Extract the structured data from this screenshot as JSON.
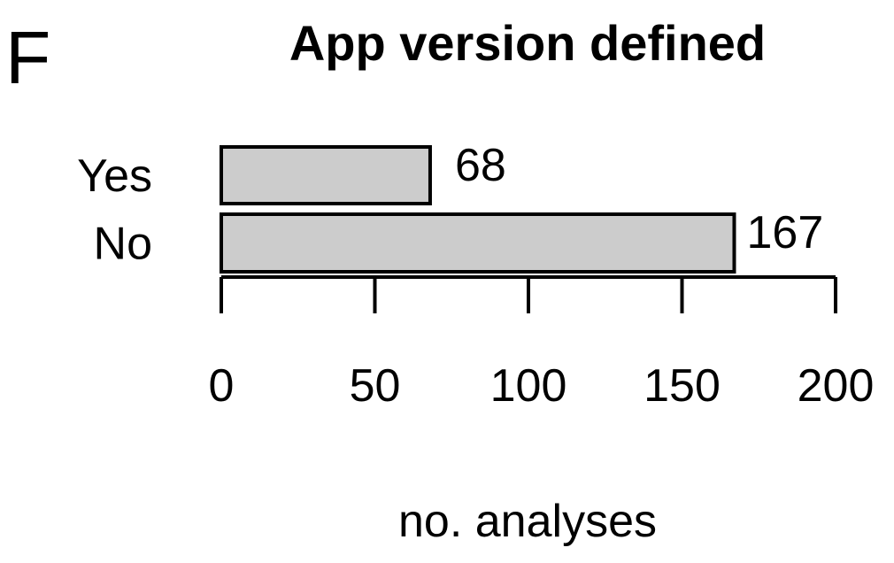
{
  "panel_letter": "F",
  "chart_data": {
    "type": "bar",
    "orientation": "horizontal",
    "title": "App version defined",
    "categories": [
      "Yes",
      "No"
    ],
    "values": [
      68,
      167
    ],
    "data_labels": [
      "68",
      "167"
    ],
    "xlabel": "no. analyses",
    "ylabel": "",
    "xlim": [
      0,
      200
    ],
    "xticks": [
      0,
      50,
      100,
      150,
      200
    ],
    "xtick_labels": [
      "0",
      "50",
      "100",
      "150",
      "200"
    ],
    "grid": false,
    "bar_color": "#cccccc",
    "bar_outline": "#000000"
  }
}
